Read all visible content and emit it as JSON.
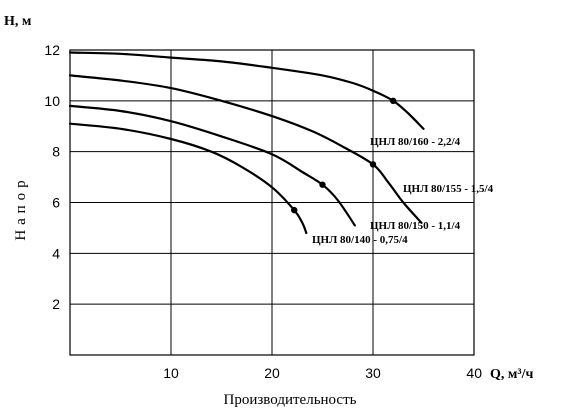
{
  "chart_data": {
    "type": "line",
    "title": "",
    "xlabel": "Производительность",
    "ylabel": "Напор",
    "x_unit_label": "Q, м³/ч",
    "y_unit_label": "Н, м",
    "xlim": [
      0,
      40
    ],
    "ylim": [
      0,
      12
    ],
    "x_ticks": [
      10,
      20,
      30,
      40
    ],
    "y_ticks": [
      2,
      4,
      6,
      8,
      10,
      12
    ],
    "grid": true,
    "series": [
      {
        "name": "ЦНЛ 80/160 - 2,2/4",
        "points": [
          [
            0,
            11.9
          ],
          [
            5,
            11.85
          ],
          [
            10,
            11.7
          ],
          [
            15,
            11.55
          ],
          [
            20,
            11.3
          ],
          [
            25,
            11.0
          ],
          [
            28,
            10.7
          ],
          [
            30,
            10.4
          ],
          [
            32,
            10.0
          ],
          [
            33.5,
            9.5
          ],
          [
            35,
            8.9
          ]
        ],
        "marker": [
          32,
          10.0
        ]
      },
      {
        "name": "ЦНЛ 80/155 - 1,5/4",
        "points": [
          [
            0,
            11.0
          ],
          [
            5,
            10.8
          ],
          [
            10,
            10.5
          ],
          [
            15,
            10.0
          ],
          [
            20,
            9.4
          ],
          [
            24,
            8.8
          ],
          [
            27,
            8.2
          ],
          [
            30,
            7.5
          ],
          [
            31.5,
            6.8
          ],
          [
            33,
            6.0
          ],
          [
            34.8,
            5.2
          ]
        ],
        "marker": [
          30,
          7.5
        ]
      },
      {
        "name": "ЦНЛ 80/150 - 1,1/4",
        "points": [
          [
            0,
            9.8
          ],
          [
            5,
            9.6
          ],
          [
            10,
            9.2
          ],
          [
            15,
            8.6
          ],
          [
            20,
            7.9
          ],
          [
            23,
            7.2
          ],
          [
            25,
            6.7
          ],
          [
            26.5,
            6.1
          ],
          [
            28.2,
            5.1
          ]
        ],
        "marker": [
          25,
          6.7
        ]
      },
      {
        "name": "ЦНЛ 80/140 - 0,75/4",
        "points": [
          [
            0,
            9.1
          ],
          [
            5,
            8.9
          ],
          [
            10,
            8.5
          ],
          [
            14,
            8.0
          ],
          [
            17,
            7.4
          ],
          [
            20,
            6.6
          ],
          [
            22.2,
            5.7
          ],
          [
            23,
            5.2
          ],
          [
            23.4,
            4.8
          ]
        ],
        "marker": [
          22.2,
          5.7
        ]
      }
    ]
  }
}
